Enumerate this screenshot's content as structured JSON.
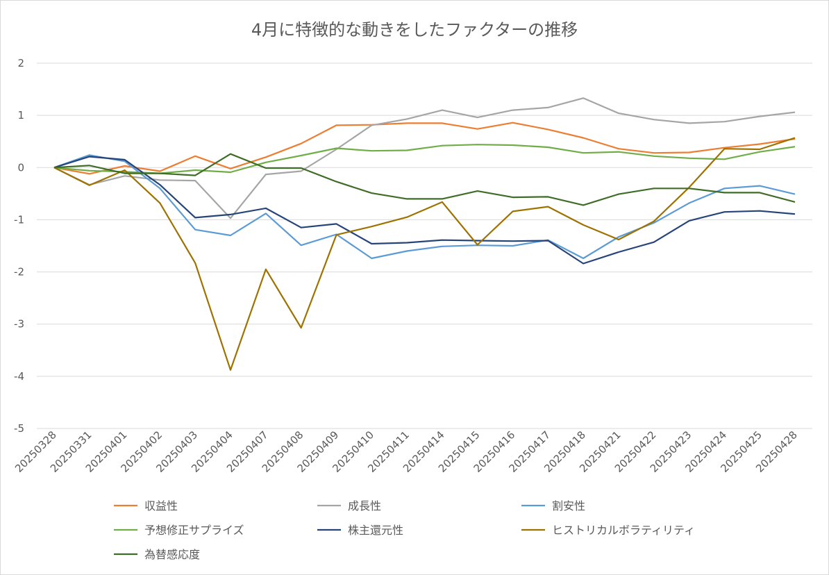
{
  "chart_data": {
    "type": "line",
    "title": "4月に特徴的な動きをしたファクターの推移",
    "xlabel": "",
    "ylabel": "",
    "ylim": [
      -5,
      2
    ],
    "yticks": [
      2,
      1,
      0,
      -1,
      -2,
      -3,
      -4,
      -5
    ],
    "grid": true,
    "legend_position": "bottom",
    "categories": [
      "20250328",
      "20250331",
      "20250401",
      "20250402",
      "20250403",
      "20250404",
      "20250407",
      "20250408",
      "20250409",
      "20250410",
      "20250411",
      "20250414",
      "20250415",
      "20250416",
      "20250417",
      "20250418",
      "20250421",
      "20250422",
      "20250423",
      "20250424",
      "20250425",
      "20250428"
    ],
    "series": [
      {
        "name": "収益性",
        "color": "#ed7d31",
        "values": [
          0,
          -0.12,
          0.03,
          -0.07,
          0.22,
          -0.02,
          0.2,
          0.46,
          0.81,
          0.82,
          0.85,
          0.85,
          0.74,
          0.86,
          0.73,
          0.57,
          0.36,
          0.28,
          0.29,
          0.38,
          0.45,
          0.55
        ]
      },
      {
        "name": "成長性",
        "color": "#a5a5a5",
        "values": [
          0,
          -0.33,
          -0.16,
          -0.24,
          -0.25,
          -0.97,
          -0.13,
          -0.07,
          0.35,
          0.81,
          0.93,
          1.1,
          0.96,
          1.1,
          1.15,
          1.33,
          1.04,
          0.92,
          0.85,
          0.88,
          0.98,
          1.06
        ]
      },
      {
        "name": "割安性",
        "color": "#5b9bd5",
        "values": [
          0,
          0.24,
          0.12,
          -0.4,
          -1.19,
          -1.3,
          -0.88,
          -1.49,
          -1.28,
          -1.74,
          -1.6,
          -1.51,
          -1.49,
          -1.5,
          -1.39,
          -1.74,
          -1.33,
          -1.06,
          -0.68,
          -0.4,
          -0.35,
          -0.51
        ]
      },
      {
        "name": "予想修正サプライズ",
        "color": "#70ad47",
        "values": [
          0,
          -0.06,
          -0.08,
          -0.11,
          -0.05,
          -0.09,
          0.1,
          0.23,
          0.37,
          0.32,
          0.33,
          0.42,
          0.44,
          0.43,
          0.39,
          0.28,
          0.3,
          0.22,
          0.18,
          0.16,
          0.3,
          0.4
        ]
      },
      {
        "name": "株主還元性",
        "color": "#264478",
        "values": [
          0,
          0.21,
          0.15,
          -0.33,
          -0.96,
          -0.9,
          -0.78,
          -1.15,
          -1.08,
          -1.46,
          -1.44,
          -1.39,
          -1.4,
          -1.41,
          -1.4,
          -1.84,
          -1.62,
          -1.43,
          -1.02,
          -0.85,
          -0.83,
          -0.89
        ]
      },
      {
        "name": "ヒストリカルボラティリティ",
        "color": "#9e7200",
        "values": [
          0,
          -0.34,
          -0.05,
          -0.68,
          -1.83,
          -3.88,
          -1.95,
          -3.07,
          -1.29,
          -1.13,
          -0.95,
          -0.66,
          -1.48,
          -0.84,
          -0.75,
          -1.1,
          -1.38,
          -1.03,
          -0.38,
          0.36,
          0.35,
          0.57
        ]
      },
      {
        "name": "為替感応度",
        "color": "#3f6c27",
        "values": [
          0,
          0.04,
          -0.11,
          -0.11,
          -0.15,
          0.26,
          -0.01,
          -0.01,
          -0.27,
          -0.49,
          -0.6,
          -0.6,
          -0.45,
          -0.57,
          -0.56,
          -0.72,
          -0.51,
          -0.4,
          -0.4,
          -0.48,
          -0.48,
          -0.66
        ]
      }
    ]
  }
}
